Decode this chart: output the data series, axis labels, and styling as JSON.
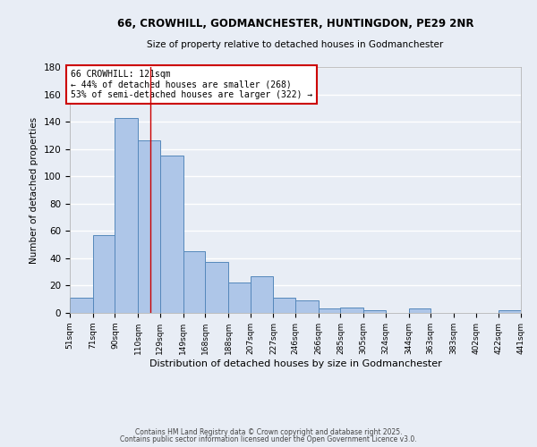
{
  "title": "66, CROWHILL, GODMANCHESTER, HUNTINGDON, PE29 2NR",
  "subtitle": "Size of property relative to detached houses in Godmanchester",
  "xlabel": "Distribution of detached houses by size in Godmanchester",
  "ylabel": "Number of detached properties",
  "bin_labels": [
    "51sqm",
    "71sqm",
    "90sqm",
    "110sqm",
    "129sqm",
    "149sqm",
    "168sqm",
    "188sqm",
    "207sqm",
    "227sqm",
    "246sqm",
    "266sqm",
    "285sqm",
    "305sqm",
    "324sqm",
    "344sqm",
    "363sqm",
    "383sqm",
    "402sqm",
    "422sqm",
    "441sqm"
  ],
  "bin_edges": [
    51,
    71,
    90,
    110,
    129,
    149,
    168,
    188,
    207,
    227,
    246,
    266,
    285,
    305,
    324,
    344,
    363,
    383,
    402,
    422,
    441
  ],
  "values": [
    11,
    57,
    143,
    126,
    115,
    45,
    37,
    22,
    27,
    11,
    9,
    3,
    4,
    2,
    0,
    3,
    0,
    0,
    0,
    2
  ],
  "bar_color": "#aec6e8",
  "bar_edge_color": "#5588bb",
  "background_color": "#e8edf5",
  "grid_color": "#ffffff",
  "vline_x": 121,
  "vline_color": "#cc0000",
  "annotation_text": "66 CROWHILL: 121sqm\n← 44% of detached houses are smaller (268)\n53% of semi-detached houses are larger (322) →",
  "annotation_box_color": "#ffffff",
  "annotation_box_edge_color": "#cc0000",
  "footer_line1": "Contains HM Land Registry data © Crown copyright and database right 2025.",
  "footer_line2": "Contains public sector information licensed under the Open Government Licence v3.0.",
  "ylim": [
    0,
    180
  ],
  "yticks": [
    0,
    20,
    40,
    60,
    80,
    100,
    120,
    140,
    160,
    180
  ]
}
